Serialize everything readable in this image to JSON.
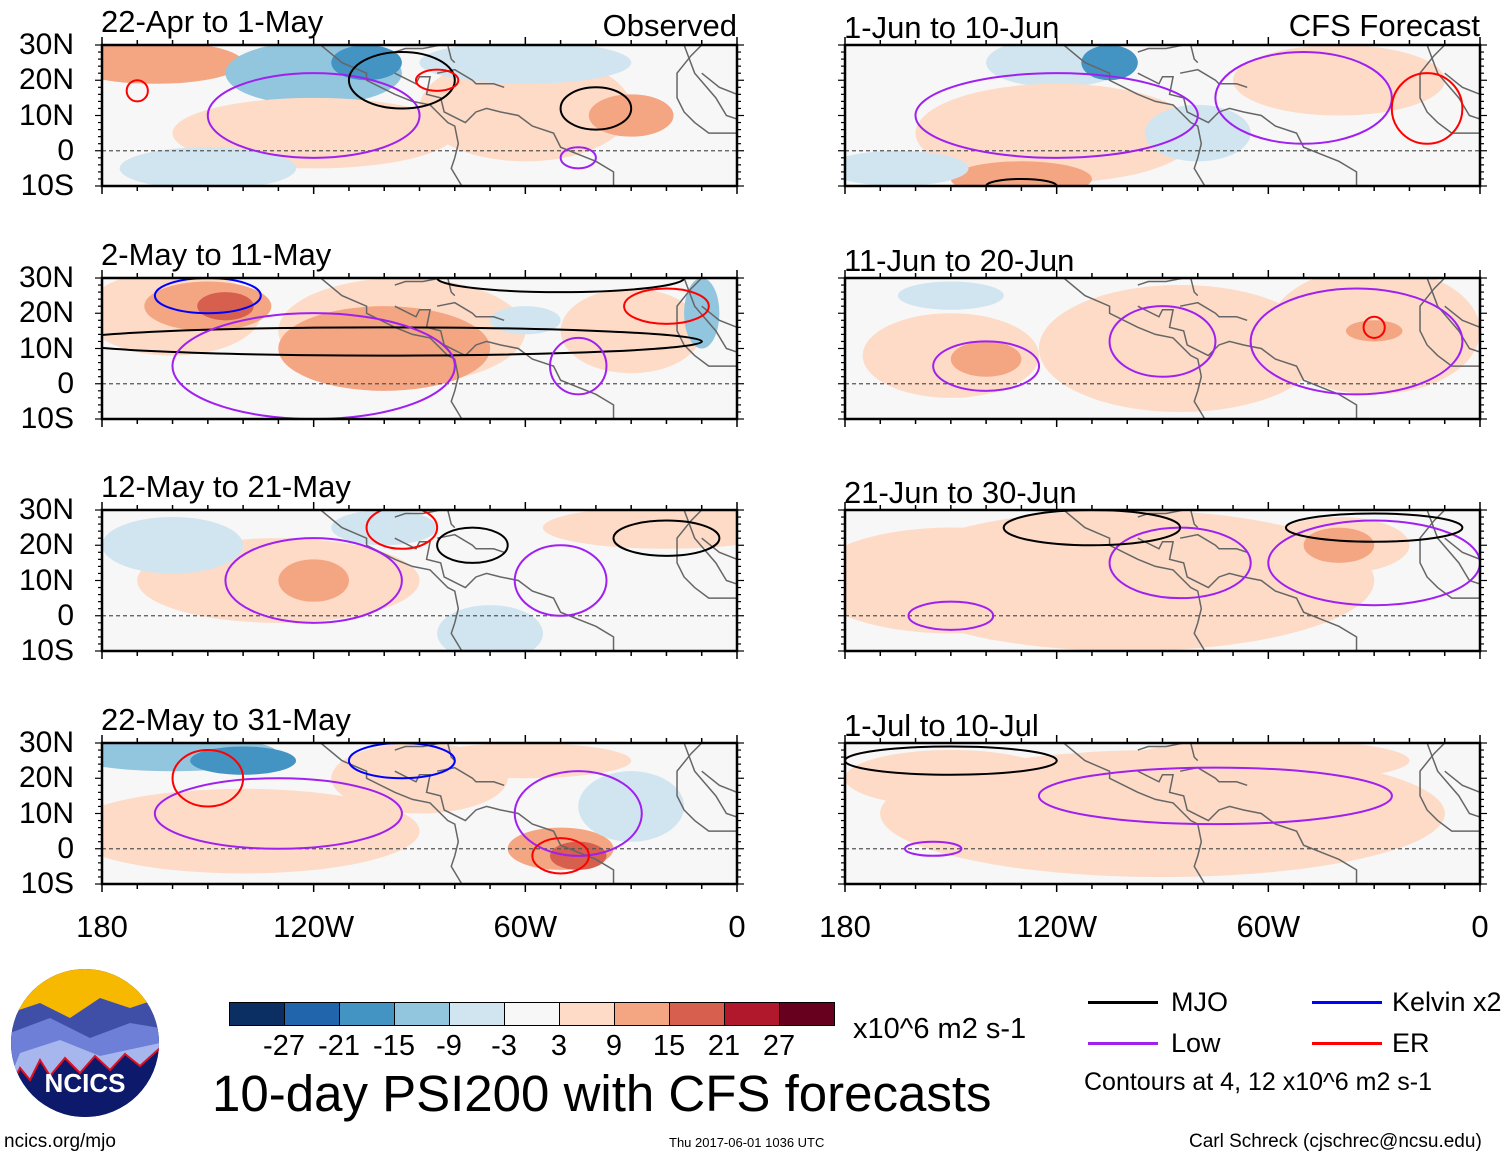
{
  "panels": [
    {
      "title": "22-Apr to 1-May",
      "tag": "Observed"
    },
    {
      "title": "2-May to 11-May"
    },
    {
      "title": "12-May to 21-May"
    },
    {
      "title": "22-May to 31-May"
    },
    {
      "title": "1-Jun to 10-Jun",
      "tag": "CFS Forecast"
    },
    {
      "title": "11-Jun to 20-Jun"
    },
    {
      "title": "21-Jun to 30-Jun"
    },
    {
      "title": "1-Jul to 10-Jul"
    }
  ],
  "lat_labels": [
    "30N",
    "20N",
    "10N",
    "0",
    "10S"
  ],
  "lon_labels": [
    "180",
    "120W",
    "60W",
    "0"
  ],
  "colorbar": {
    "colors": [
      "#0b2f62",
      "#2166ac",
      "#4393c3",
      "#92c5de",
      "#d1e5f0",
      "#f7f7f7",
      "#fddbc7",
      "#f4a582",
      "#d6604d",
      "#b2182b",
      "#67001f"
    ],
    "labels": [
      "-27",
      "-21",
      "-15",
      "-9",
      "-3",
      "3",
      "9",
      "15",
      "21",
      "27"
    ],
    "units": "x10^6 m2 s-1"
  },
  "title": "10-day PSI200 with CFS forecasts",
  "legend": {
    "items": [
      {
        "label": "MJO",
        "color": "#000000"
      },
      {
        "label": "Kelvin x2",
        "color": "#0000ff"
      },
      {
        "label": "Low",
        "color": "#a020f0"
      },
      {
        "label": "ER",
        "color": "#ff0000"
      }
    ],
    "note": "Contours at 4, 12 x10^6 m2 s-1"
  },
  "logo": {
    "text": "NCICS"
  },
  "footer": {
    "url": "ncics.org/mjo",
    "timestamp": "Thu 2017-06-01 1036 UTC",
    "author": "Carl Schreck (cjschrec@ncsu.edu)"
  }
}
